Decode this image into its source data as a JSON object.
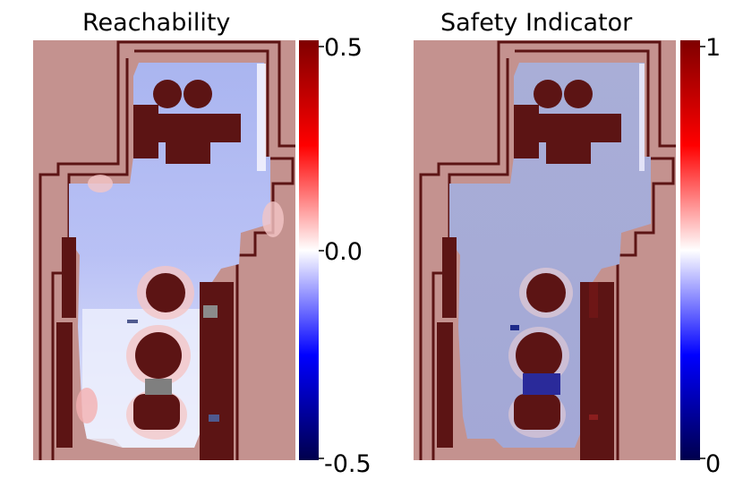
{
  "chart_data": [
    {
      "type": "heatmap",
      "title": "Reachability",
      "colormap": "seismic",
      "colorbar": {
        "min": -0.5,
        "max": 0.5,
        "ticks": [
          "0.5",
          "0.0",
          "-0.5"
        ]
      },
      "background_color": "#c4928f",
      "wall_color": "#5c1414",
      "obstacle_color": "#5c1414",
      "dominant_region_value": -0.15
    },
    {
      "type": "heatmap",
      "title": "Safety Indicator",
      "colormap": "seismic",
      "colorbar": {
        "min": 0,
        "max": 1,
        "ticks": [
          "1",
          "0"
        ]
      },
      "background_color": "#c4928f",
      "wall_color": "#5c1414",
      "obstacle_color": "#5c1414",
      "dominant_region_value": 0.3
    }
  ],
  "colors": {
    "seismic_top": "#7f0000",
    "seismic_mid": "#ffffff",
    "seismic_bottom": "#00004c"
  }
}
